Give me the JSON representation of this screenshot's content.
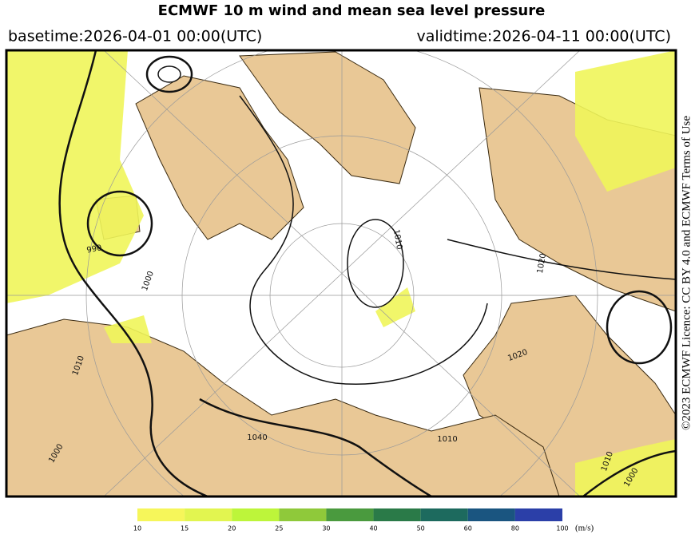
{
  "header": {
    "title": "ECMWF 10 m wind and mean sea level pressure",
    "basetime": "basetime:2026-04-01 00:00(UTC)",
    "validtime": "validtime:2026-04-11 00:00(UTC)"
  },
  "licence": "©2023 ECMWF Licence: CC BY 4.0 and ECMWF Terms of Use",
  "isobar_labels": [
    "990",
    "1000",
    "1010",
    "1020",
    "1040",
    "1010",
    "1000",
    "1010",
    "1020",
    "1010",
    "1000"
  ],
  "colorbar": {
    "ticks": [
      10,
      15,
      20,
      25,
      30,
      40,
      50,
      60,
      80,
      100
    ],
    "colors": [
      "#f6f65a",
      "#e2f550",
      "#bdf53a",
      "#8fc93a",
      "#4a9a3e",
      "#2a7a48",
      "#1d6a5e",
      "#1a5580",
      "#2b3fa8"
    ],
    "unit": "(m/s)"
  }
}
